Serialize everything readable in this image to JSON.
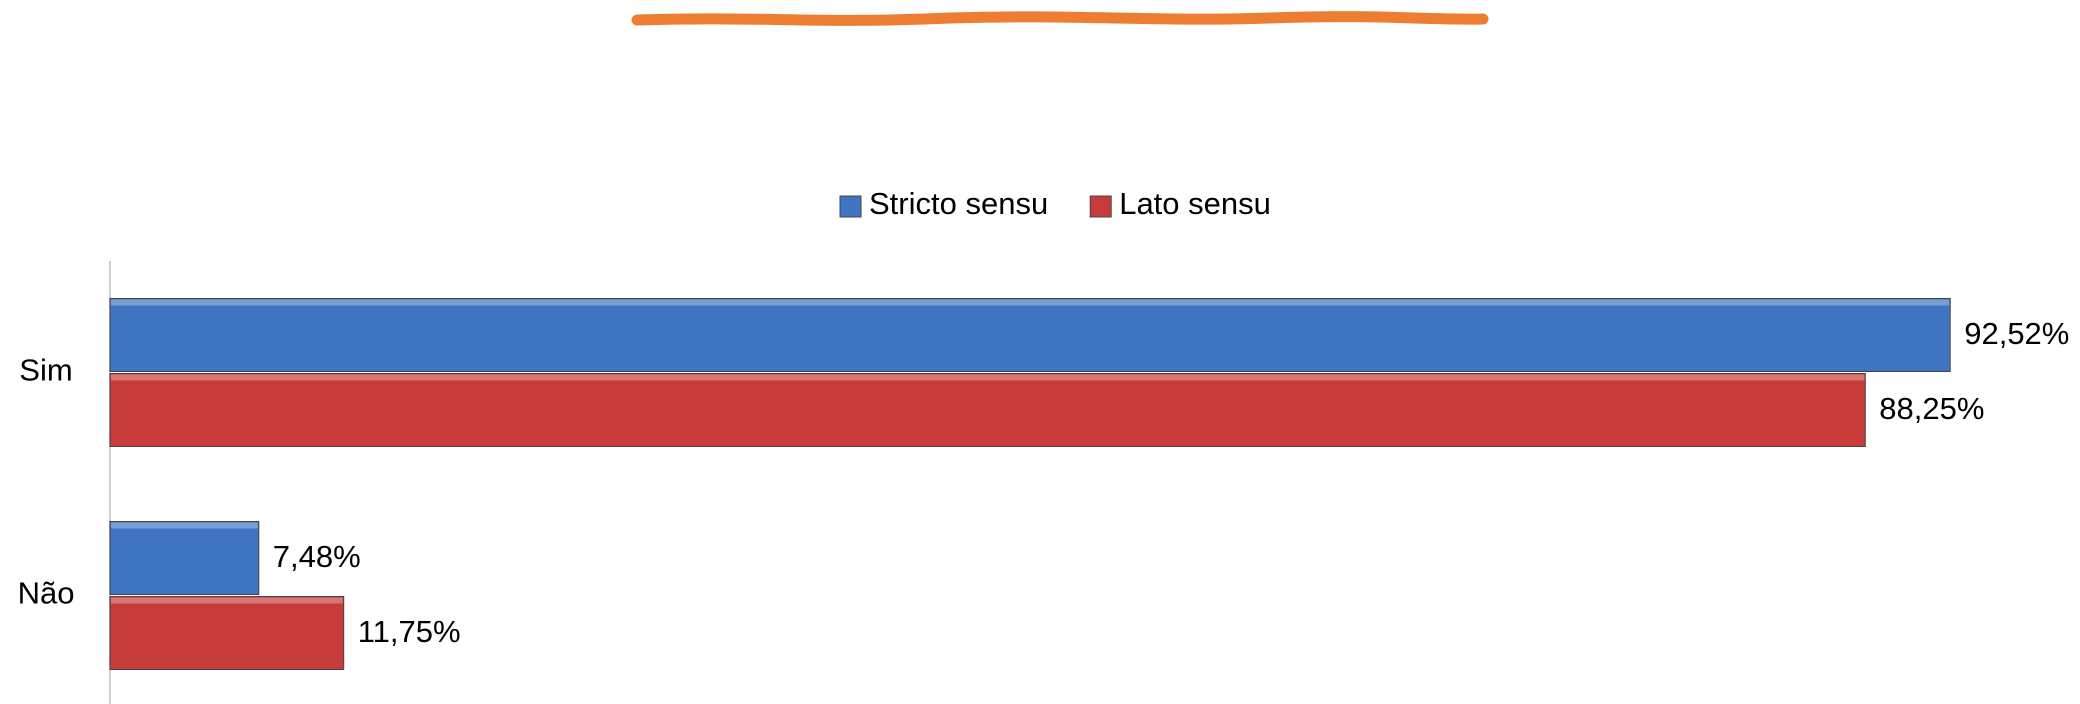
{
  "chart_data": {
    "type": "bar",
    "orientation": "horizontal",
    "categories": [
      "Sim",
      "Não"
    ],
    "series": [
      {
        "name": "Stricto sensu",
        "color": "#3f74c2",
        "values": [
          92.52,
          7.48
        ],
        "value_labels": [
          "92,52%",
          "7,48%"
        ]
      },
      {
        "name": "Lato sensu",
        "color": "#c83b3b",
        "values": [
          88.25,
          11.75
        ],
        "value_labels": [
          "88,25%",
          "11,75%"
        ]
      }
    ],
    "legend": "top"
  }
}
